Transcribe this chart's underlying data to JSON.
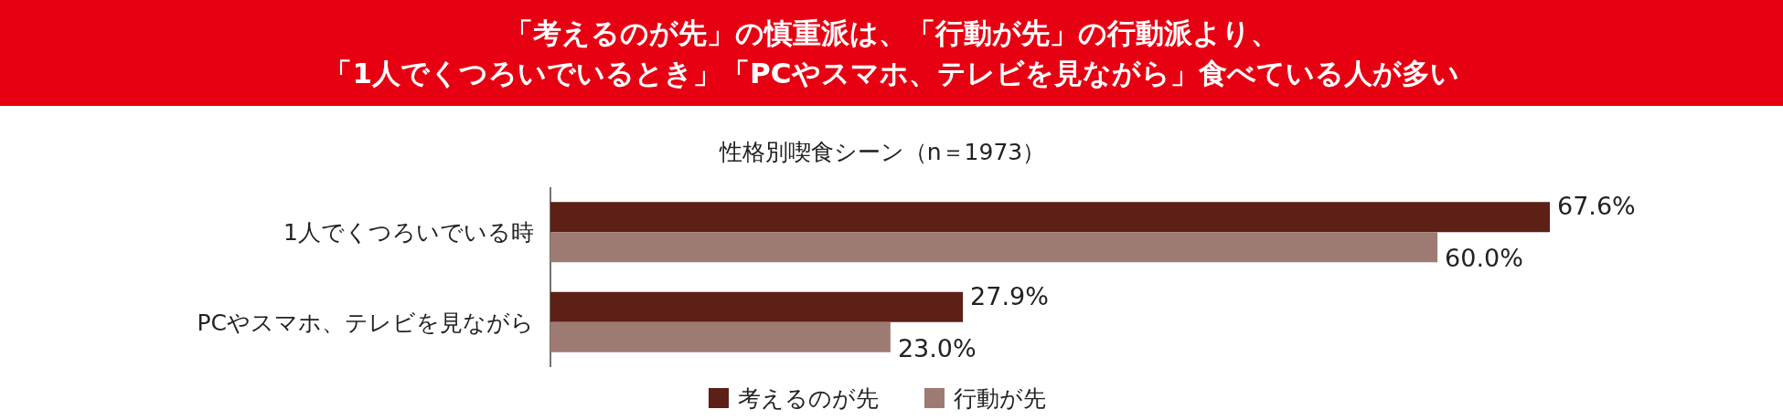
{
  "chart_data": {
    "type": "bar",
    "orientation": "horizontal",
    "title": "「考えるのが先」の慎重派は、「行動が先」の行動派より、「1人でくつろいでいるとき」「PCやスマホ、テレビを見ながら」食べている人が多い",
    "subtitle": "性格別喫食シーン（n＝1973）",
    "categories": [
      "1人でくつろいでいる時",
      "PCやスマホ、テレビを見ながら"
    ],
    "series": [
      {
        "name": "考えるのが先",
        "color": "#5c2016",
        "values": [
          67.6,
          27.9
        ],
        "value_labels": [
          "67.6%",
          "27.9%"
        ]
      },
      {
        "name": "行動が先",
        "color": "#9e7b72",
        "values": [
          60.0,
          23.0
        ],
        "value_labels": [
          "60.0%",
          "23.0%"
        ]
      }
    ],
    "legend": "bottom"
  }
}
